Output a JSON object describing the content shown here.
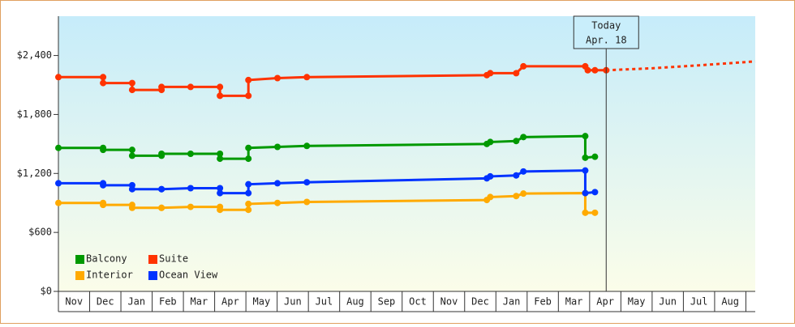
{
  "chart_data": {
    "type": "line",
    "ylim": [
      0,
      2800
    ],
    "yticks": [
      {
        "value": 0,
        "label": "$0"
      },
      {
        "value": 600,
        "label": "$600"
      },
      {
        "value": 1200,
        "label": "$1,200"
      },
      {
        "value": 1800,
        "label": "$1,800"
      },
      {
        "value": 2400,
        "label": "$2,400"
      }
    ],
    "xlim": [
      0,
      22.3
    ],
    "xticks": [
      {
        "value": 0.5,
        "label": "Nov"
      },
      {
        "value": 1.5,
        "label": "Dec"
      },
      {
        "value": 2.5,
        "label": "Jan"
      },
      {
        "value": 3.5,
        "label": "Feb"
      },
      {
        "value": 4.5,
        "label": "Mar"
      },
      {
        "value": 5.5,
        "label": "Apr"
      },
      {
        "value": 6.5,
        "label": "May"
      },
      {
        "value": 7.5,
        "label": "Jun"
      },
      {
        "value": 8.5,
        "label": "Jul"
      },
      {
        "value": 9.5,
        "label": "Aug"
      },
      {
        "value": 10.5,
        "label": "Sep"
      },
      {
        "value": 11.5,
        "label": "Oct"
      },
      {
        "value": 12.5,
        "label": "Nov"
      },
      {
        "value": 13.5,
        "label": "Dec"
      },
      {
        "value": 14.5,
        "label": "Jan"
      },
      {
        "value": 15.5,
        "label": "Feb"
      },
      {
        "value": 16.5,
        "label": "Mar"
      },
      {
        "value": 17.5,
        "label": "Apr"
      },
      {
        "value": 18.5,
        "label": "May"
      },
      {
        "value": 19.5,
        "label": "Jun"
      },
      {
        "value": 20.5,
        "label": "Jul"
      },
      {
        "value": 21.5,
        "label": "Aug"
      }
    ],
    "series": [
      {
        "name": "Balcony",
        "color": "#009900",
        "x": [
          0,
          1.43,
          1.43,
          2.36,
          2.36,
          3.3,
          3.3,
          4.23,
          5.17,
          5.17,
          6.08,
          6.08,
          7.01,
          7.95,
          13.71,
          13.82,
          14.65,
          14.88,
          16.86,
          16.86,
          17.17
        ],
        "values": [
          1460,
          1460,
          1440,
          1440,
          1380,
          1380,
          1400,
          1400,
          1400,
          1350,
          1350,
          1460,
          1470,
          1480,
          1500,
          1520,
          1530,
          1570,
          1580,
          1360,
          1370
        ]
      },
      {
        "name": "Suite",
        "color": "#ff3300",
        "x": [
          0,
          1.43,
          1.43,
          2.36,
          2.36,
          3.3,
          3.3,
          4.23,
          5.17,
          5.17,
          6.08,
          6.08,
          7.01,
          7.95,
          13.71,
          13.82,
          14.65,
          14.88,
          16.86,
          16.94,
          17.17,
          17.53
        ],
        "values": [
          2180,
          2180,
          2120,
          2120,
          2050,
          2050,
          2080,
          2080,
          2080,
          1990,
          1990,
          2150,
          2170,
          2180,
          2200,
          2220,
          2220,
          2290,
          2290,
          2250,
          2250,
          2250
        ],
        "forecast": {
          "x": [
            17.53,
            19,
            20.5,
            22.3
          ],
          "values": [
            2250,
            2270,
            2300,
            2340
          ]
        }
      },
      {
        "name": "Interior",
        "color": "#ffaa00",
        "x": [
          0,
          1.43,
          1.43,
          2.36,
          2.36,
          3.3,
          3.3,
          4.23,
          5.17,
          5.17,
          6.08,
          6.08,
          7.01,
          7.95,
          13.71,
          13.82,
          14.65,
          14.88,
          16.86,
          16.86,
          17.17
        ],
        "values": [
          900,
          900,
          880,
          880,
          850,
          850,
          850,
          860,
          860,
          830,
          830,
          890,
          900,
          910,
          930,
          960,
          970,
          995,
          1000,
          800,
          800
        ]
      },
      {
        "name": "Ocean View",
        "color": "#0033ff",
        "x": [
          0,
          1.43,
          1.43,
          2.36,
          2.36,
          3.3,
          3.3,
          4.23,
          5.17,
          5.17,
          6.08,
          6.08,
          7.01,
          7.95,
          13.71,
          13.82,
          14.65,
          14.88,
          16.86,
          16.86,
          17.17
        ],
        "values": [
          1100,
          1100,
          1080,
          1080,
          1040,
          1040,
          1040,
          1050,
          1050,
          1000,
          1000,
          1090,
          1100,
          1110,
          1150,
          1170,
          1180,
          1220,
          1230,
          1000,
          1010
        ]
      }
    ],
    "annotation": {
      "x": 17.53,
      "lines": [
        "Today",
        "Apr. 18"
      ]
    }
  }
}
